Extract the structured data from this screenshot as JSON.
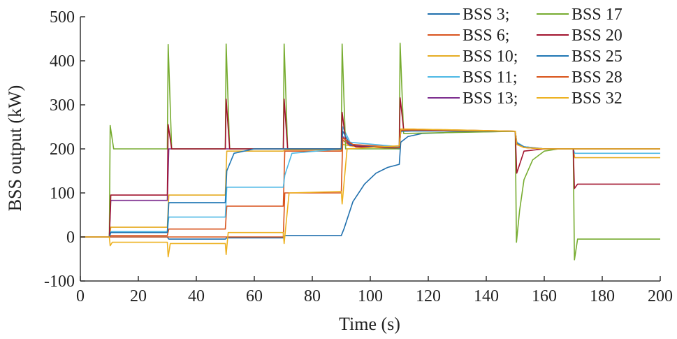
{
  "chart_data": {
    "type": "line",
    "title": "",
    "xlabel": "Time (s)",
    "ylabel": "BSS output (kW)",
    "xlim": [
      0,
      200
    ],
    "ylim": [
      -100,
      500
    ],
    "xticks": [
      "0",
      "20",
      "40",
      "60",
      "80",
      "100",
      "120",
      "140",
      "160",
      "180",
      "200"
    ],
    "yticks": [
      "-100",
      "0",
      "100",
      "200",
      "300",
      "400",
      "500"
    ],
    "grid": false,
    "legend_position": "top-right",
    "legend_labels": [
      "BSS 3;",
      "BSS 17",
      "BSS 6;",
      "BSS 20",
      "BSS 10;",
      "BSS 25",
      "BSS 11;",
      "BSS 28",
      "BSS 13;",
      "BSS 32"
    ],
    "series": [
      {
        "name": "BSS 3",
        "color": "#1f6fad",
        "x": [
          0,
          10,
          10.5,
          30,
          30.5,
          50,
          50.5,
          70,
          70.5,
          90,
          91,
          94,
          98,
          102,
          106,
          110,
          110.5,
          113,
          118,
          130,
          150,
          150.5,
          153,
          160,
          170,
          200
        ],
        "y": [
          0,
          0,
          0,
          0,
          -5,
          -5,
          -2,
          -2,
          3,
          3,
          20,
          80,
          120,
          145,
          158,
          165,
          215,
          228,
          235,
          238,
          240,
          215,
          205,
          200,
          200,
          200
        ]
      },
      {
        "name": "BSS 6",
        "color": "#d9541e",
        "x": [
          0,
          10,
          10.5,
          30,
          30.5,
          50,
          50.5,
          70,
          70.5,
          90,
          90.5,
          93,
          110,
          110.5,
          115,
          150,
          150.5,
          153,
          160,
          170,
          200
        ],
        "y": [
          0,
          0,
          3,
          3,
          18,
          18,
          70,
          70,
          195,
          195,
          220,
          207,
          200,
          240,
          242,
          240,
          210,
          203,
          200,
          200,
          200
        ]
      },
      {
        "name": "BSS 10",
        "color": "#e6ac22",
        "x": [
          0,
          10,
          10.5,
          30,
          30.5,
          50,
          50.5,
          70,
          70.5,
          90,
          90.5,
          94,
          110,
          110.5,
          115,
          150,
          150.5,
          153,
          160,
          170,
          170.5,
          200
        ],
        "y": [
          0,
          0,
          22,
          22,
          95,
          95,
          195,
          195,
          198,
          198,
          210,
          206,
          205,
          245,
          245,
          240,
          212,
          204,
          200,
          200,
          180,
          180
        ]
      },
      {
        "name": "BSS 11",
        "color": "#4db8e5",
        "x": [
          0,
          10,
          10.5,
          30,
          30.5,
          50,
          50.5,
          70,
          70.5,
          73,
          90,
          90.5,
          93,
          110,
          110.5,
          115,
          150,
          150.5,
          153,
          160,
          170,
          170.5,
          200
        ],
        "y": [
          0,
          0,
          12,
          12,
          45,
          45,
          113,
          113,
          140,
          190,
          200,
          250,
          215,
          205,
          240,
          242,
          240,
          215,
          205,
          200,
          200,
          190,
          190
        ]
      },
      {
        "name": "BSS 13",
        "color": "#7d2e8f",
        "x": [
          0,
          10,
          10.5,
          30,
          30.5,
          50,
          50.5,
          70,
          90,
          90.5,
          93,
          110,
          110.5,
          115,
          150,
          150.5,
          153,
          160,
          170,
          200
        ],
        "y": [
          0,
          0,
          83,
          83,
          200,
          200,
          200,
          200,
          200,
          228,
          208,
          202,
          240,
          241,
          240,
          212,
          204,
          200,
          200,
          200
        ]
      },
      {
        "name": "BSS 17",
        "color": "#77ac30",
        "x": [
          0,
          10,
          10.3,
          11.5,
          30,
          30.3,
          31.5,
          50,
          50.3,
          51.5,
          70,
          70.3,
          71.5,
          90,
          90.3,
          91.5,
          110,
          110.3,
          111.5,
          150,
          150.4,
          151.5,
          153,
          156,
          160,
          165,
          170,
          170.4,
          171.5,
          200
        ],
        "y": [
          0,
          0,
          253,
          200,
          200,
          437,
          200,
          200,
          438,
          200,
          200,
          438,
          200,
          200,
          438,
          200,
          200,
          440,
          235,
          240,
          -12,
          60,
          130,
          175,
          195,
          200,
          200,
          -52,
          -5,
          -5
        ]
      },
      {
        "name": "BSS 20",
        "color": "#a2142f",
        "x": [
          0,
          10,
          10.5,
          30,
          30.3,
          31.5,
          50,
          50.3,
          51.5,
          70,
          70.3,
          71.5,
          90,
          90.3,
          91.5,
          95,
          110,
          110.3,
          111.5,
          150,
          150.5,
          153,
          160,
          170,
          170.4,
          171.5,
          200
        ],
        "y": [
          0,
          0,
          95,
          95,
          255,
          200,
          200,
          313,
          200,
          200,
          313,
          200,
          200,
          283,
          220,
          205,
          202,
          316,
          245,
          240,
          145,
          195,
          200,
          200,
          110,
          120,
          120
        ]
      },
      {
        "name": "BSS 25",
        "color": "#1f77b4",
        "x": [
          0,
          10,
          10.5,
          30,
          30.5,
          50,
          50.5,
          53,
          60,
          70,
          90,
          90.5,
          93,
          110,
          110.5,
          115,
          150,
          150.5,
          153,
          160,
          170,
          200
        ],
        "y": [
          0,
          0,
          10,
          10,
          78,
          78,
          150,
          190,
          200,
          200,
          200,
          240,
          210,
          202,
          240,
          241,
          240,
          213,
          204,
          200,
          200,
          200
        ]
      },
      {
        "name": "BSS 28",
        "color": "#d95319",
        "x": [
          0,
          10,
          10.5,
          30,
          30.5,
          50,
          50.5,
          70,
          70.5,
          90,
          90.5,
          94,
          110,
          110.5,
          115,
          150,
          150.5,
          153,
          160,
          170,
          200
        ],
        "y": [
          0,
          0,
          0,
          0,
          0,
          0,
          0,
          0,
          100,
          100,
          225,
          210,
          203,
          242,
          243,
          240,
          211,
          203,
          200,
          200,
          200
        ]
      },
      {
        "name": "BSS 32",
        "color": "#edb120",
        "x": [
          0,
          10,
          10.3,
          11,
          30,
          30.3,
          31,
          50,
          50.3,
          51,
          70,
          70.3,
          72,
          90,
          90.3,
          92,
          110,
          110.5,
          115,
          150,
          150.5,
          153,
          160,
          170,
          200
        ],
        "y": [
          0,
          0,
          -20,
          -12,
          -12,
          -45,
          -15,
          -15,
          -40,
          10,
          10,
          -15,
          100,
          103,
          75,
          200,
          207,
          245,
          245,
          240,
          210,
          203,
          200,
          200,
          200
        ]
      }
    ]
  }
}
